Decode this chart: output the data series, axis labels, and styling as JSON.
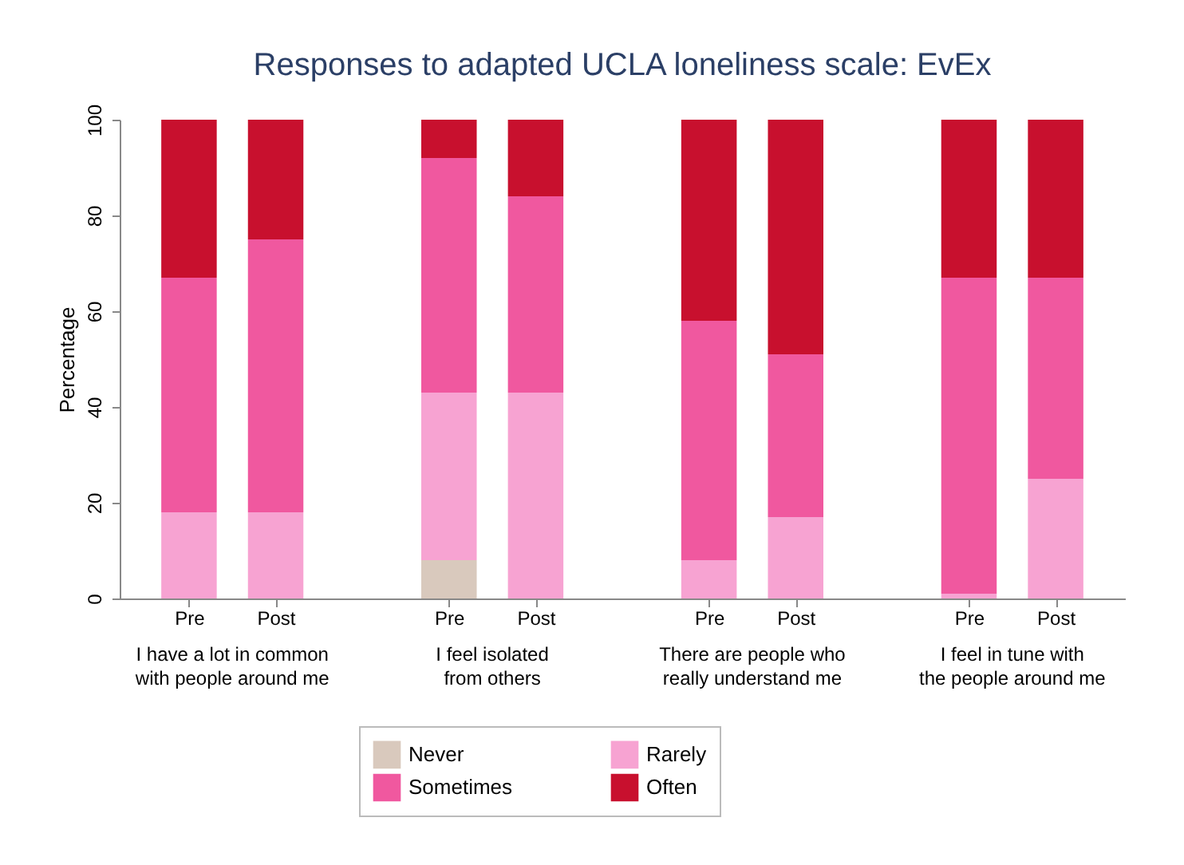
{
  "chart_data": {
    "type": "bar",
    "stacked": true,
    "title": "Responses to adapted UCLA loneliness scale: EvEx",
    "ylabel": "Percentage",
    "categories": [
      "Pre",
      "Post",
      "Pre",
      "Post",
      "Pre",
      "Post",
      "Pre",
      "Post"
    ],
    "annotations": [
      "I have a lot in common with people around me",
      "I feel isolated from others",
      "There are people who really understand me",
      "I feel in tune with the people around me"
    ],
    "series": [
      {
        "name": "Never",
        "color": "#d9c9bd",
        "values": [
          0,
          0,
          8,
          0,
          0,
          0,
          0,
          0
        ]
      },
      {
        "name": "Rarely",
        "color": "#f7a3d2",
        "values": [
          18,
          18,
          35,
          43,
          8,
          17,
          1,
          25
        ]
      },
      {
        "name": "Sometimes",
        "color": "#f0589f",
        "values": [
          49,
          57,
          49,
          41,
          50,
          34,
          66,
          42
        ]
      },
      {
        "name": "Often",
        "color": "#c8102e",
        "values": [
          33,
          25,
          8,
          16,
          42,
          49,
          33,
          33
        ]
      }
    ],
    "ylim": [
      0,
      100
    ],
    "yticks": [
      0,
      20,
      40,
      60,
      80,
      100
    ],
    "grid": false,
    "legend": "bottom"
  }
}
